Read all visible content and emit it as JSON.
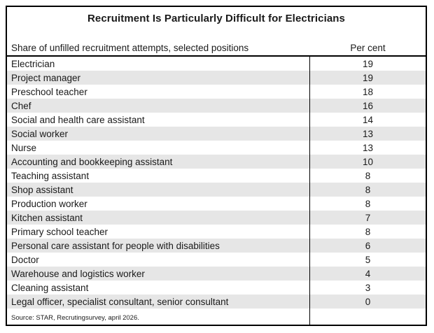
{
  "title": "Recruitment Is Particularly Difficult for Electricians",
  "header": {
    "left": "Share of unfilled recruitment attempts, selected positions",
    "right": "Per cent"
  },
  "source": "Source: STAR, Recrutingsurvey, april 2026.",
  "colors": {
    "border": "#000000",
    "alt_row": "#e6e6e6",
    "text": "#1a1a1a",
    "background": "#ffffff"
  },
  "chart_data": {
    "type": "table",
    "title": "Recruitment Is Particularly Difficult for Electricians",
    "columns": [
      "Share of unfilled recruitment attempts, selected positions",
      "Per cent"
    ],
    "rows": [
      {
        "position": "Electrician",
        "percent": 19
      },
      {
        "position": "Project manager",
        "percent": 19
      },
      {
        "position": "Preschool teacher",
        "percent": 18
      },
      {
        "position": "Chef",
        "percent": 16
      },
      {
        "position": "Social and health care assistant",
        "percent": 14
      },
      {
        "position": "Social worker",
        "percent": 13
      },
      {
        "position": "Nurse",
        "percent": 13
      },
      {
        "position": "Accounting and bookkeeping assistant",
        "percent": 10
      },
      {
        "position": "Teaching assistant",
        "percent": 8
      },
      {
        "position": "Shop assistant",
        "percent": 8
      },
      {
        "position": "Production worker",
        "percent": 8
      },
      {
        "position": "Kitchen assistant",
        "percent": 7
      },
      {
        "position": "Primary school teacher",
        "percent": 8
      },
      {
        "position": "Personal care assistant for people with disabilities",
        "percent": 6
      },
      {
        "position": "Doctor",
        "percent": 5
      },
      {
        "position": "Warehouse and logistics worker",
        "percent": 4
      },
      {
        "position": "Cleaning assistant",
        "percent": 3
      },
      {
        "position": "Legal officer, specialist consultant, senior consultant",
        "percent": 0
      }
    ],
    "source": "Source: STAR, Recrutingsurvey, april 2026.",
    "layout": {
      "alternating_row_shading": true,
      "shading_starts_on_row": 2,
      "value_alignment": "center",
      "grid": "outer-border-and-column-divider"
    }
  }
}
